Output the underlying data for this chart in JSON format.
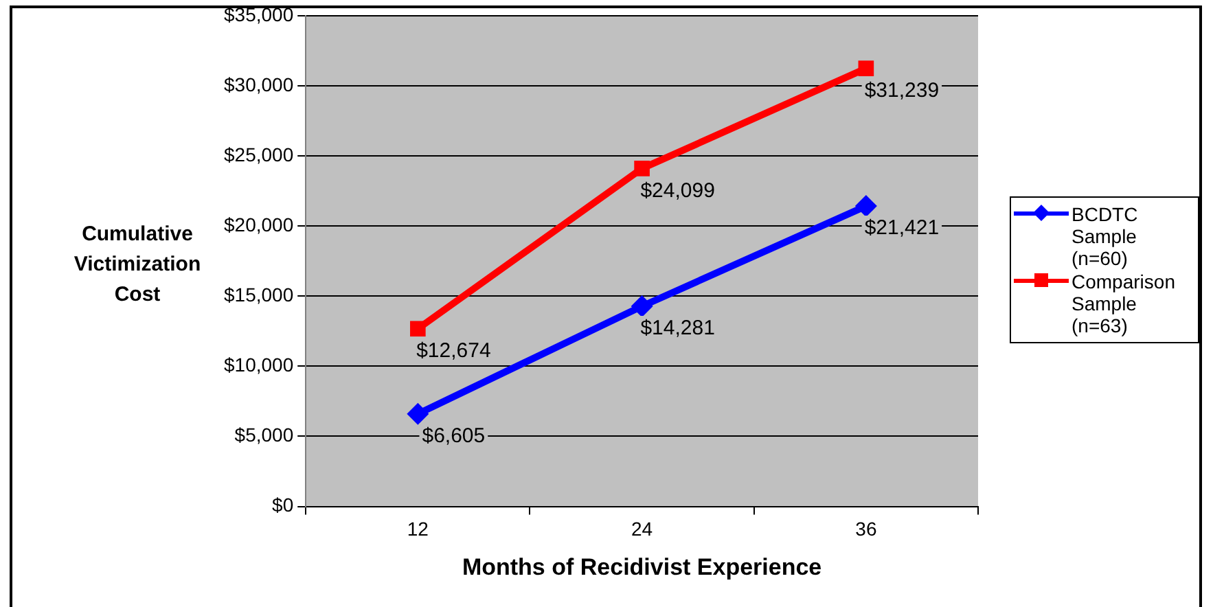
{
  "chart_data": {
    "type": "line",
    "xlabel": "Months of Recidivist Experience",
    "ylabel": "Cumulative Victimization Cost",
    "categories": [
      "12",
      "24",
      "36"
    ],
    "series": [
      {
        "name": "BCDTC Sample (n=60)",
        "color": "#0000ff",
        "marker": "diamond",
        "values": [
          6605,
          14281,
          21421
        ],
        "value_labels": [
          "$6,605",
          "$14,281",
          "$21,421"
        ]
      },
      {
        "name": "Comparison Sample (n=63)",
        "color": "#ff0000",
        "marker": "square",
        "values": [
          12674,
          24099,
          31239
        ],
        "value_labels": [
          "$12,674",
          "$24,099",
          "$31,239"
        ]
      }
    ],
    "ylim": [
      0,
      35000
    ],
    "yticks": [
      {
        "value": 0,
        "label": "$0"
      },
      {
        "value": 5000,
        "label": "$5,000"
      },
      {
        "value": 10000,
        "label": "$10,000"
      },
      {
        "value": 15000,
        "label": "$15,000"
      },
      {
        "value": 20000,
        "label": "$20,000"
      },
      {
        "value": 25000,
        "label": "$25,000"
      },
      {
        "value": 30000,
        "label": "$30,000"
      },
      {
        "value": 35000,
        "label": "$35,000"
      }
    ],
    "grid": "y",
    "legend": "right",
    "line_style": "solid"
  }
}
